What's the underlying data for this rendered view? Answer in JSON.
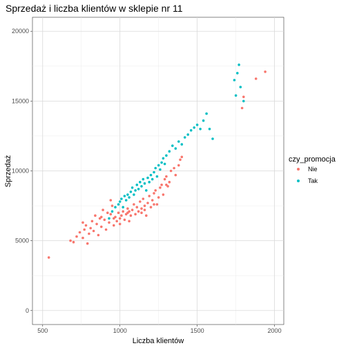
{
  "chart_data": {
    "type": "scatter",
    "title": "Sprzedaż i liczba klientów w sklepie nr 11",
    "xlabel": "Liczba klientów",
    "ylabel": "Sprzedaż",
    "xlim": [
      500,
      2000
    ],
    "ylim": [
      0,
      20000
    ],
    "x_ticks": [
      500,
      1000,
      1500,
      2000
    ],
    "y_ticks": [
      0,
      5000,
      10000,
      15000,
      20000
    ],
    "x_tick_labels": [
      "500",
      "1000",
      "1500",
      "2000"
    ],
    "y_tick_labels": [
      "0",
      "5000",
      "10000",
      "15000",
      "20000"
    ],
    "grid": true,
    "legend": {
      "title": "czy_promocja",
      "placement": "right"
    },
    "series": [
      {
        "name": "Nie",
        "color": "#F8766D",
        "points": [
          [
            540,
            3800
          ],
          [
            680,
            5000
          ],
          [
            700,
            4900
          ],
          [
            720,
            5300
          ],
          [
            740,
            5600
          ],
          [
            760,
            5200
          ],
          [
            770,
            5800
          ],
          [
            780,
            6100
          ],
          [
            790,
            4800
          ],
          [
            800,
            5500
          ],
          [
            810,
            5900
          ],
          [
            820,
            6400
          ],
          [
            830,
            5700
          ],
          [
            840,
            6800
          ],
          [
            850,
            6200
          ],
          [
            860,
            5400
          ],
          [
            870,
            6600
          ],
          [
            880,
            6000
          ],
          [
            890,
            7200
          ],
          [
            900,
            6500
          ],
          [
            910,
            5800
          ],
          [
            920,
            7000
          ],
          [
            930,
            6300
          ],
          [
            940,
            6900
          ],
          [
            950,
            7500
          ],
          [
            960,
            6100
          ],
          [
            970,
            6700
          ],
          [
            980,
            6400
          ],
          [
            990,
            7000
          ],
          [
            1000,
            6200
          ],
          [
            1000,
            6600
          ],
          [
            1010,
            6800
          ],
          [
            1020,
            7100
          ],
          [
            1030,
            6500
          ],
          [
            1040,
            6900
          ],
          [
            1050,
            7300
          ],
          [
            1060,
            6400
          ],
          [
            1070,
            6800
          ],
          [
            1080,
            7200
          ],
          [
            1090,
            7600
          ],
          [
            1100,
            6900
          ],
          [
            1110,
            7400
          ],
          [
            1120,
            7100
          ],
          [
            1130,
            7800
          ],
          [
            1140,
            7300
          ],
          [
            1150,
            8000
          ],
          [
            1160,
            7500
          ],
          [
            1170,
            6800
          ],
          [
            1180,
            7700
          ],
          [
            1190,
            8200
          ],
          [
            1200,
            7400
          ],
          [
            1210,
            7900
          ],
          [
            1220,
            8400
          ],
          [
            1230,
            8600
          ],
          [
            1240,
            7600
          ],
          [
            1250,
            8100
          ],
          [
            1260,
            8800
          ],
          [
            1270,
            9000
          ],
          [
            1280,
            8300
          ],
          [
            1290,
            9400
          ],
          [
            1300,
            9600
          ],
          [
            1310,
            8900
          ],
          [
            1320,
            9200
          ],
          [
            1330,
            10000
          ],
          [
            1350,
            10200
          ],
          [
            1360,
            9700
          ],
          [
            1380,
            10400
          ],
          [
            1390,
            10800
          ],
          [
            1400,
            11000
          ],
          [
            1790,
            14500
          ],
          [
            1800,
            15300
          ],
          [
            1880,
            16600
          ],
          [
            1940,
            17100
          ],
          [
            760,
            6300
          ],
          [
            880,
            6700
          ],
          [
            960,
            6600
          ],
          [
            1060,
            7100
          ],
          [
            1140,
            7000
          ],
          [
            1220,
            7600
          ],
          [
            1300,
            9000
          ],
          [
            940,
            7900
          ],
          [
            1050,
            7000
          ],
          [
            1160,
            7200
          ]
        ]
      },
      {
        "name": "Tak",
        "color": "#00BFC4",
        "points": [
          [
            930,
            6600
          ],
          [
            950,
            7100
          ],
          [
            970,
            7400
          ],
          [
            990,
            7600
          ],
          [
            1000,
            7800
          ],
          [
            1010,
            8000
          ],
          [
            1020,
            7400
          ],
          [
            1030,
            8200
          ],
          [
            1040,
            7900
          ],
          [
            1050,
            8300
          ],
          [
            1060,
            8100
          ],
          [
            1070,
            8500
          ],
          [
            1080,
            8800
          ],
          [
            1090,
            8300
          ],
          [
            1100,
            8600
          ],
          [
            1110,
            9000
          ],
          [
            1120,
            8700
          ],
          [
            1130,
            9200
          ],
          [
            1140,
            8900
          ],
          [
            1150,
            9400
          ],
          [
            1160,
            9100
          ],
          [
            1170,
            8600
          ],
          [
            1180,
            9500
          ],
          [
            1190,
            9200
          ],
          [
            1200,
            9700
          ],
          [
            1210,
            9400
          ],
          [
            1220,
            9900
          ],
          [
            1230,
            10200
          ],
          [
            1240,
            9600
          ],
          [
            1250,
            10400
          ],
          [
            1260,
            10100
          ],
          [
            1270,
            10600
          ],
          [
            1280,
            10900
          ],
          [
            1290,
            10500
          ],
          [
            1300,
            11100
          ],
          [
            1320,
            11400
          ],
          [
            1340,
            11800
          ],
          [
            1360,
            11600
          ],
          [
            1380,
            12100
          ],
          [
            1400,
            11900
          ],
          [
            1420,
            12400
          ],
          [
            1440,
            12600
          ],
          [
            1460,
            12900
          ],
          [
            1480,
            13100
          ],
          [
            1500,
            13300
          ],
          [
            1520,
            13000
          ],
          [
            1540,
            13600
          ],
          [
            1560,
            14100
          ],
          [
            1580,
            13000
          ],
          [
            1600,
            12300
          ],
          [
            1740,
            16500
          ],
          [
            1760,
            17000
          ],
          [
            1750,
            15400
          ],
          [
            1770,
            17600
          ],
          [
            1780,
            16000
          ],
          [
            1800,
            15000
          ]
        ]
      }
    ]
  }
}
